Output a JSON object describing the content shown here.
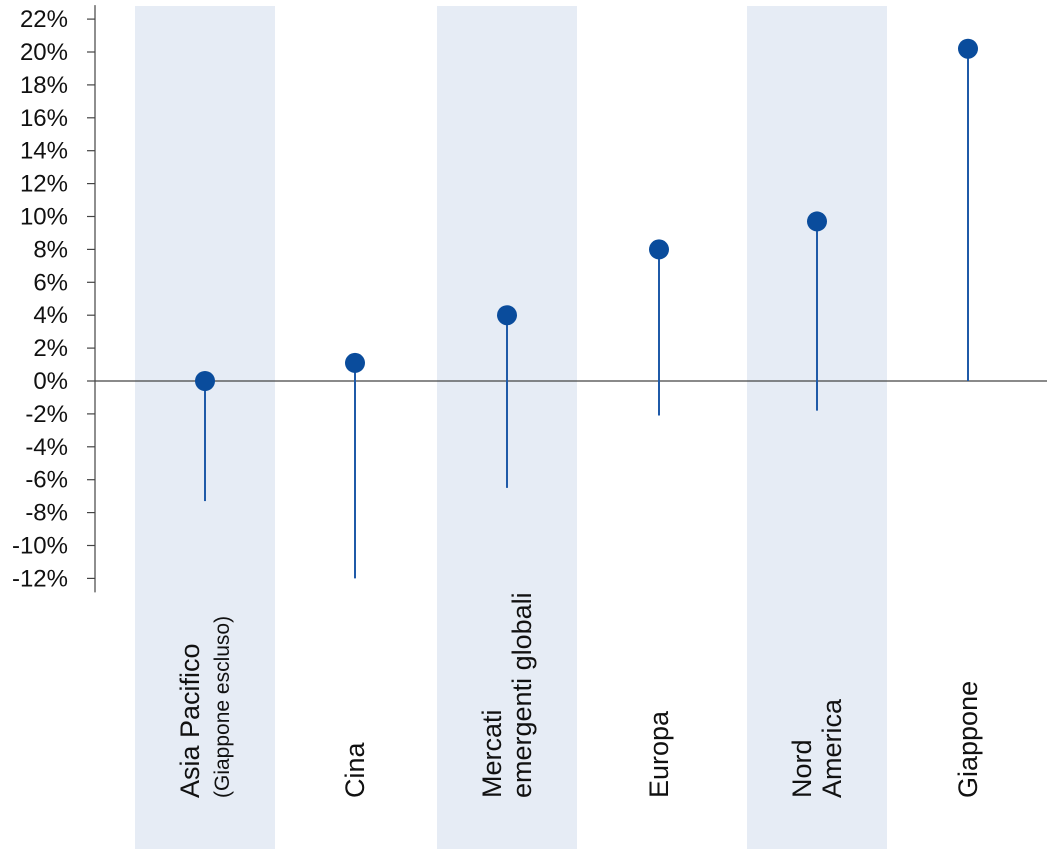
{
  "chart_data": {
    "type": "range-dot",
    "title": "",
    "xlabel": "",
    "ylabel": "",
    "ylim": [
      -12,
      22
    ],
    "ytick_step": 2,
    "ytick_labels": [
      "22%",
      "20%",
      "18%",
      "16%",
      "14%",
      "12%",
      "10%",
      "8%",
      "6%",
      "4%",
      "2%",
      "0%",
      "-2%",
      "-4%",
      "-6%",
      "-8%",
      "-10%",
      "-12%"
    ],
    "grid": false,
    "legend": "none",
    "categories": [
      {
        "label_lines": [
          "Asia Pacifico",
          "(Giappone escluso)"
        ],
        "value": 0.0,
        "low": -7.3,
        "high": 0.0,
        "shaded": true
      },
      {
        "label_lines": [
          "Cina"
        ],
        "value": 1.1,
        "low": -12.0,
        "high": 1.1,
        "shaded": false
      },
      {
        "label_lines": [
          "Mercati",
          "emergenti globali"
        ],
        "value": 4.0,
        "low": -6.5,
        "high": 4.0,
        "shaded": true
      },
      {
        "label_lines": [
          "Europa"
        ],
        "value": 8.0,
        "low": -2.1,
        "high": 8.0,
        "shaded": false
      },
      {
        "label_lines": [
          "Nord",
          "America"
        ],
        "value": 9.7,
        "low": -1.8,
        "high": 9.7,
        "shaded": true
      },
      {
        "label_lines": [
          "Giappone"
        ],
        "value": 20.2,
        "low": 0.0,
        "high": 20.2,
        "shaded": false
      }
    ]
  },
  "colors": {
    "band": "#e6ecf5",
    "marker": "#0a4c9c",
    "stem": "#1f5aa8",
    "axis": "#444444",
    "text": "#111111"
  }
}
